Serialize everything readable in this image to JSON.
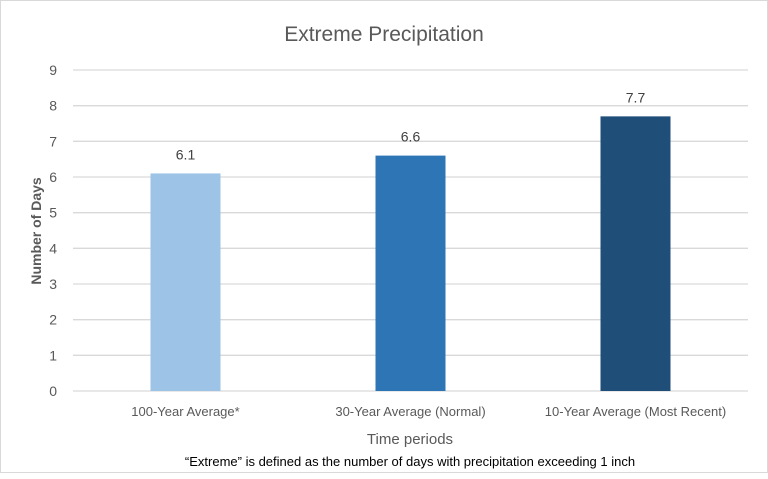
{
  "chart_data": {
    "type": "bar",
    "title": "Extreme Precipitation",
    "xlabel": "Time periods",
    "ylabel": "Number of Days",
    "categories": [
      "100-Year Average*",
      "30-Year Average (Normal)",
      "10-Year Average (Most Recent)"
    ],
    "values": [
      6.1,
      6.6,
      7.7
    ],
    "data_labels": [
      "6.1",
      "6.6",
      "7.7"
    ],
    "colors": [
      "#9dc3e6",
      "#2e75b6",
      "#1f4e79"
    ],
    "ylim": [
      0,
      9
    ],
    "yticks": [
      0,
      1,
      2,
      3,
      4,
      5,
      6,
      7,
      8,
      9
    ],
    "grid": true,
    "legend": "none",
    "footnote": "“Extreme” is defined as the number of days with precipitation exceeding 1 inch"
  }
}
